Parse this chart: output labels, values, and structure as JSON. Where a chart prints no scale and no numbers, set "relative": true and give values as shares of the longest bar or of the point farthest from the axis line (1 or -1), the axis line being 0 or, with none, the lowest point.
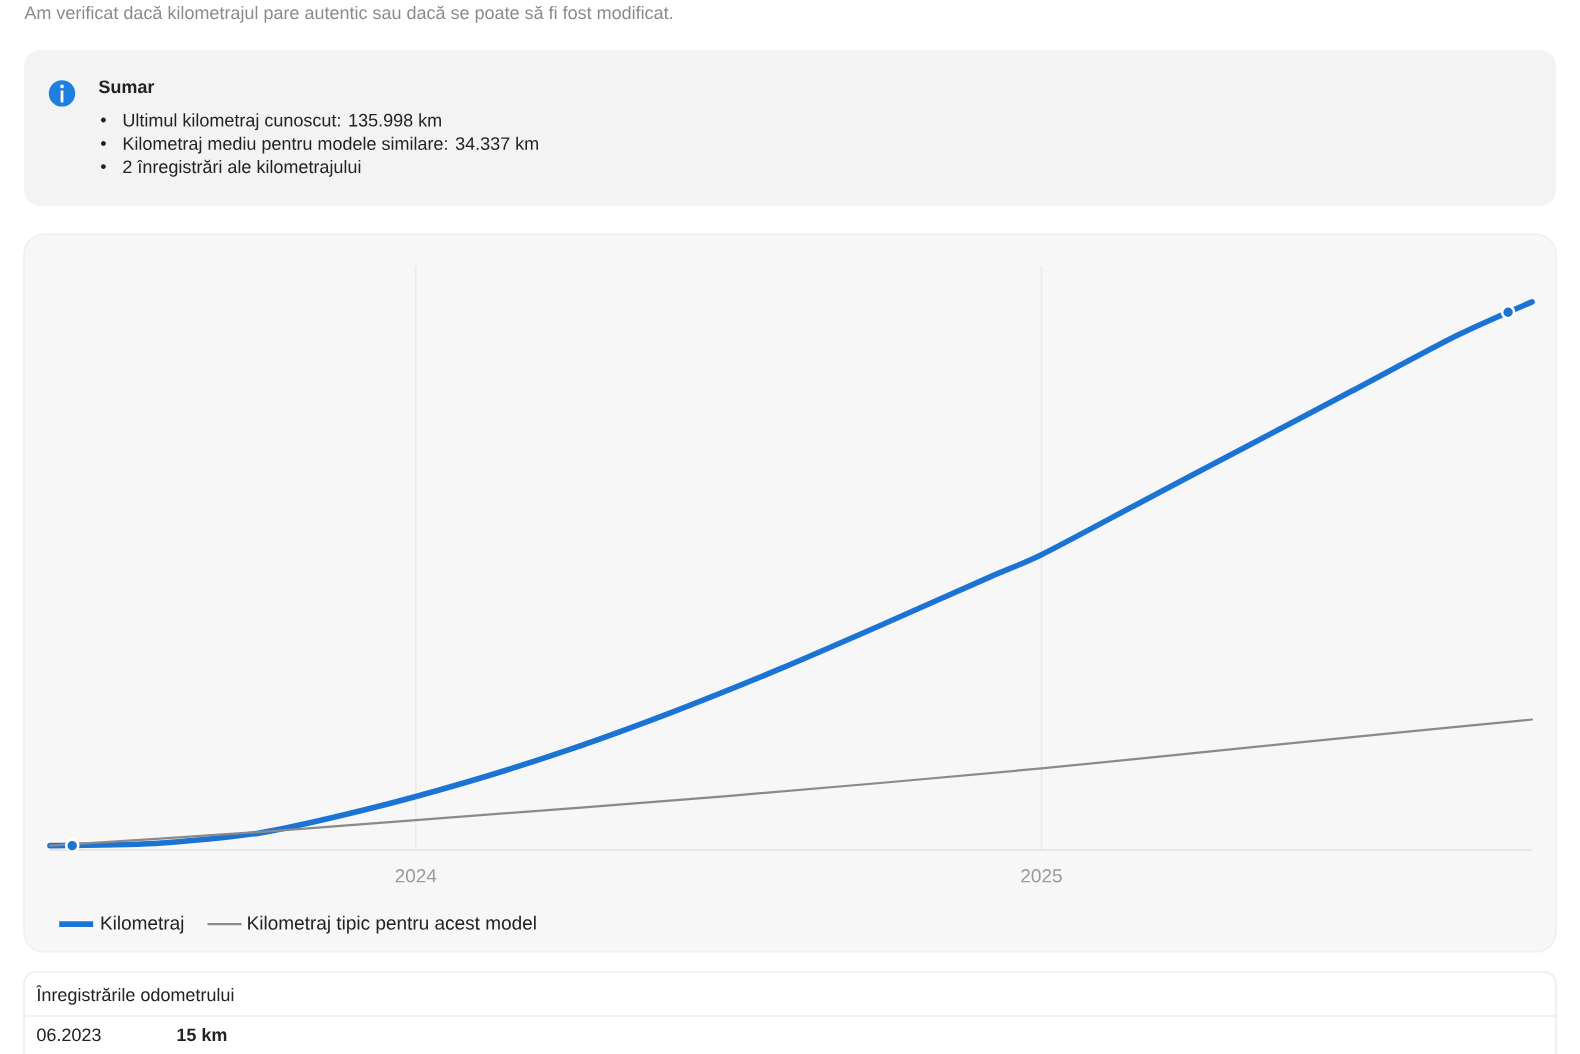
{
  "chart_data": {
    "type": "line",
    "subtitle": "Am verificat dacă kilometrajul pare autentic sau dacă se poate să fi fost modificat.",
    "annotations": [
      "Sumar",
      "Ultimul kilometraj cunoscut: 135.998 km",
      "Kilometraj mediu pentru modele similare: 34.337 km",
      "2 înregistrări ale kilometrajului",
      "Înregistrările odometrului",
      "06.2023",
      "15 km"
    ],
    "relative": true,
    "xlim": [
      "2023-06-01",
      "2025-10-15"
    ],
    "xticks": [
      "2024",
      "2025"
    ],
    "grid": "x",
    "legend": "bottom",
    "series": [
      {
        "name": "Kilometraj",
        "color": "#1b74d4",
        "x": [
          "2023-06-01",
          "2023-08-01",
          "2023-10-01",
          "2023-12-01",
          "2024-02-01",
          "2024-04-01",
          "2024-06-01",
          "2024-08-01",
          "2024-10-01",
          "2024-12-01",
          "2025-01-01",
          "2025-03-01",
          "2025-05-01",
          "2025-07-01",
          "2025-09-01",
          "2025-10-15"
        ],
        "values": [
          0,
          0.004,
          0.023,
          0.065,
          0.118,
          0.178,
          0.248,
          0.325,
          0.408,
          0.493,
          0.535,
          0.633,
          0.734,
          0.835,
          0.938,
          1
        ]
      },
      {
        "name": "Kilometraj tipic pentru acest model",
        "color": "#8a8a8a",
        "x": [
          "2023-06-01",
          "2023-10-01",
          "2024-01-01",
          "2024-07-01",
          "2025-01-01",
          "2025-06-01",
          "2025-10-15"
        ],
        "values": [
          0,
          0.025,
          0.047,
          0.091,
          0.142,
          0.19,
          0.232
        ]
      },
      {
        "type": "scatter",
        "color": "#1b74d4",
        "marker": "circle",
        "x": [
          "2023-06-14",
          "2025-10-01"
        ],
        "values": [
          0,
          0.981
        ]
      }
    ]
  }
}
